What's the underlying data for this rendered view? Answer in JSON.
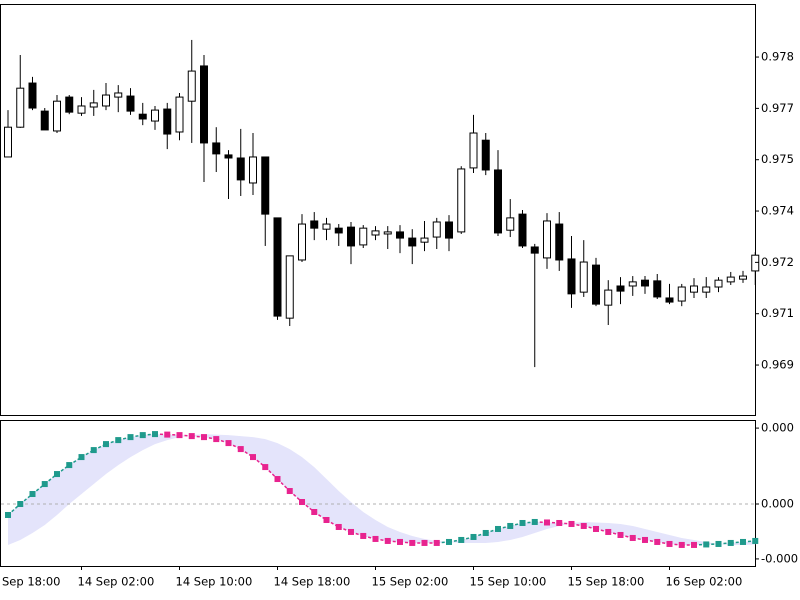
{
  "chart_data": [
    {
      "type": "candlestick",
      "open": [
        0.97538,
        0.97625,
        0.97754,
        0.97672,
        0.97614,
        0.97713,
        0.97666,
        0.97684,
        0.97687,
        0.97713,
        0.97716,
        0.97663,
        0.97643,
        0.97678,
        0.97611,
        0.97701,
        0.97804,
        0.97579,
        0.97544,
        0.97535,
        0.97462,
        0.97538,
        0.9736,
        0.97067,
        0.97237,
        0.97351,
        0.97327,
        0.9733,
        0.97333,
        0.97281,
        0.9731,
        0.97313,
        0.97319,
        0.97301,
        0.97289,
        0.97304,
        0.97348,
        0.97319,
        0.97506,
        0.97587,
        0.975,
        0.97324,
        0.97371,
        0.97275,
        0.97243,
        0.97342,
        0.9724,
        0.97143,
        0.97222,
        0.97105,
        0.97161,
        0.97161,
        0.97178,
        0.97176,
        0.97126,
        0.97117,
        0.97143,
        0.97143,
        0.97158,
        0.97173,
        0.97181,
        0.97205
      ],
      "high": [
        0.97675,
        0.97836,
        0.97772,
        0.97681,
        0.97719,
        0.97719,
        0.97713,
        0.97734,
        0.97754,
        0.97748,
        0.97739,
        0.97696,
        0.97687,
        0.97696,
        0.97725,
        0.9788,
        0.97836,
        0.97625,
        0.97558,
        0.9762,
        0.97608,
        0.97538,
        0.9736,
        0.97249,
        0.97371,
        0.97377,
        0.9736,
        0.97342,
        0.97348,
        0.97339,
        0.97336,
        0.97336,
        0.97339,
        0.97327,
        0.97351,
        0.9736,
        0.97368,
        0.97511,
        0.97661,
        0.97608,
        0.97558,
        0.97415,
        0.97383,
        0.97284,
        0.97374,
        0.97377,
        0.97307,
        0.97295,
        0.97243,
        0.97178,
        0.97187,
        0.9719,
        0.9719,
        0.97196,
        0.97167,
        0.97167,
        0.97184,
        0.97187,
        0.97187,
        0.97202,
        0.97205,
        0.9726
      ],
      "low": [
        0.97538,
        0.97623,
        0.97675,
        0.97617,
        0.97608,
        0.97663,
        0.97658,
        0.97658,
        0.97675,
        0.97669,
        0.97661,
        0.97631,
        0.97617,
        0.97561,
        0.97587,
        0.97579,
        0.97465,
        0.97494,
        0.97415,
        0.97424,
        0.97427,
        0.97278,
        0.97062,
        0.97044,
        0.97231,
        0.97295,
        0.97295,
        0.97278,
        0.97225,
        0.97272,
        0.97295,
        0.97269,
        0.97257,
        0.97225,
        0.97263,
        0.97269,
        0.97263,
        0.97313,
        0.97491,
        0.97485,
        0.97307,
        0.97304,
        0.97272,
        0.96924,
        0.97211,
        0.97205,
        0.97097,
        0.97129,
        0.97102,
        0.97047,
        0.97108,
        0.97132,
        0.97138,
        0.97123,
        0.97108,
        0.97102,
        0.97126,
        0.97126,
        0.97143,
        0.97164,
        0.9717,
        0.97164
      ],
      "close": [
        0.97625,
        0.97739,
        0.97681,
        0.97617,
        0.97701,
        0.97669,
        0.97687,
        0.97696,
        0.97719,
        0.97725,
        0.97672,
        0.97649,
        0.97675,
        0.97605,
        0.97713,
        0.97789,
        0.97579,
        0.97547,
        0.97535,
        0.97471,
        0.97538,
        0.97371,
        0.97073,
        0.97249,
        0.97342,
        0.9733,
        0.97342,
        0.97316,
        0.97278,
        0.9733,
        0.97322,
        0.97319,
        0.97301,
        0.97278,
        0.97301,
        0.97348,
        0.97301,
        0.97503,
        0.97608,
        0.975,
        0.97316,
        0.9736,
        0.97278,
        0.97257,
        0.97351,
        0.97237,
        0.97138,
        0.97231,
        0.97108,
        0.97149,
        0.97146,
        0.97173,
        0.97161,
        0.97129,
        0.97114,
        0.97158,
        0.97161,
        0.97158,
        0.97178,
        0.97187,
        0.9719,
        0.97251
      ],
      "up_color": "#ffffff",
      "down_color": "#000000",
      "wick_color": "#000000",
      "ylim": [
        0.96784,
        0.97985
      ],
      "yticks": [
        {
          "value": 0.9783,
          "label": "0.978"
        },
        {
          "value": 0.9768,
          "label": "0.977"
        },
        {
          "value": 0.9753,
          "label": "0.975"
        },
        {
          "value": 0.9738,
          "label": "0.974"
        },
        {
          "value": 0.9723,
          "label": "0.972"
        },
        {
          "value": 0.9708,
          "label": "0.971"
        },
        {
          "value": 0.9693,
          "label": "0.969"
        }
      ],
      "xticks": [
        {
          "value": -2,
          "label": "Sep 18:00"
        },
        {
          "value": 6,
          "label": "14 Sep 02:00"
        },
        {
          "value": 14,
          "label": "14 Sep 10:00"
        },
        {
          "value": 22,
          "label": "14 Sep 18:00"
        },
        {
          "value": 30,
          "label": "15 Sep 02:00"
        },
        {
          "value": 38,
          "label": "15 Sep 10:00"
        },
        {
          "value": 46,
          "label": "15 Sep 18:00"
        },
        {
          "value": 54,
          "label": "16 Sep 02:00"
        }
      ]
    },
    {
      "type": "oscillator",
      "values": [
        -4.34e-05,
        0,
        3.95e-05,
        7.89e-05,
        0.0001184,
        0.0001539,
        0.0001855,
        0.0002131,
        0.0002368,
        0.0002526,
        0.0002644,
        0.0002723,
        0.0002763,
        0.0002743,
        0.0002723,
        0.0002684,
        0.0002644,
        0.0002566,
        0.0002408,
        0.0002171,
        0.0001855,
        0.000146,
        9.87e-05,
        5.13e-05,
        7.9e-06,
        -3.16e-05,
        -6.32e-05,
        -9.08e-05,
        -0.0001105,
        -0.0001263,
        -0.0001381,
        -0.000146,
        -0.00015,
        -0.0001539,
        -0.0001539,
        -0.0001539,
        -0.00015,
        -0.0001421,
        -0.0001303,
        -0.0001145,
        -9.87e-05,
        -8.68e-05,
        -7.5e-05,
        -7.1e-05,
        -7.3e-05,
        -7.5e-05,
        -7.89e-05,
        -8.68e-05,
        -9.87e-05,
        -0.0001105,
        -0.0001224,
        -0.0001342,
        -0.0001421,
        -0.00015,
        -0.0001579,
        -0.0001618,
        -0.0001618,
        -0.0001598,
        -0.0001579,
        -0.0001539,
        -0.00015,
        -0.000146
      ],
      "signal": [
        -0.0001618,
        -0.0001421,
        -0.0001145,
        -8.29e-05,
        -4.34e-05,
        0,
        3.95e-05,
        7.89e-05,
        0.0001184,
        0.0001539,
        0.0001855,
        0.0002131,
        0.0002368,
        0.0002526,
        0.0002644,
        0.0002723,
        0.0002763,
        0.0002743,
        0.0002723,
        0.0002684,
        0.0002644,
        0.0002566,
        0.0002408,
        0.0002171,
        0.0001855,
        0.000146,
        9.87e-05,
        5.13e-05,
        7.9e-06,
        -3.16e-05,
        -6.32e-05,
        -9.08e-05,
        -0.0001105,
        -0.0001263,
        -0.0001381,
        -0.000146,
        -0.00015,
        -0.0001539,
        -0.0001539,
        -0.0001539,
        -0.00015,
        -0.0001421,
        -0.0001303,
        -0.0001145,
        -9.87e-05,
        -8.68e-05,
        -7.5e-05,
        -7.1e-05,
        -7.3e-05,
        -7.5e-05,
        -7.89e-05,
        -8.68e-05,
        -9.87e-05,
        -0.0001105,
        -0.0001224,
        -0.0001342,
        -0.0001421,
        -0.00015,
        -0.0001579,
        -0.0001618,
        -0.0001618,
        -0.0001598
      ],
      "color_up": "#1f9a8c",
      "color_down": "#e8238f",
      "band_color": "#e4e4fb",
      "zero_line_color": "#b0b0b0",
      "ylim": [
        -0.000245,
        0.000332
      ],
      "yticks": [
        {
          "value": 0.0003,
          "label": "0.000"
        },
        {
          "value": 0,
          "label": "0.000"
        },
        {
          "value": -0.000217,
          "label": "-0.000"
        }
      ]
    }
  ]
}
